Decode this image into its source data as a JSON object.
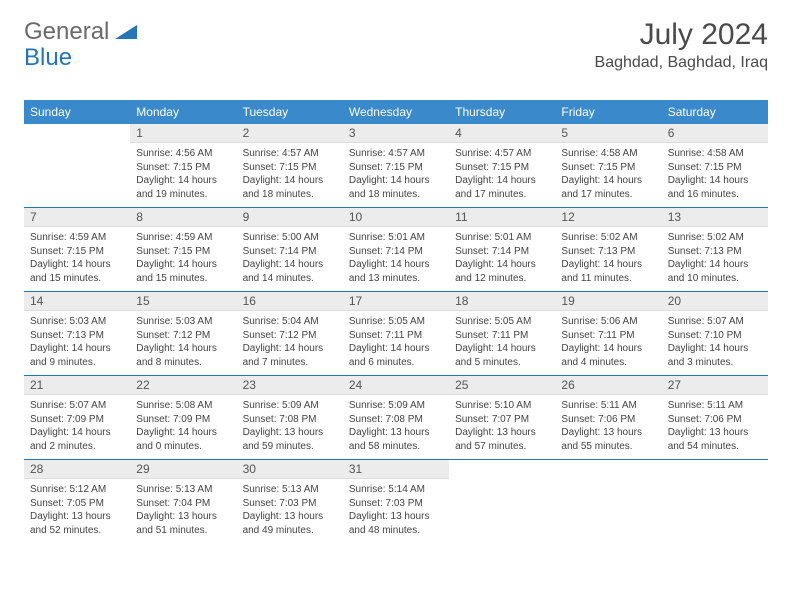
{
  "logo": {
    "general": "General",
    "blue": "Blue"
  },
  "title": "July 2024",
  "location": "Baghdad, Baghdad, Iraq",
  "colors": {
    "header_bg": "#3a8acb",
    "accent": "#2673b6",
    "daynum_bg": "#ececec",
    "text": "#444444",
    "title_text": "#4a4a4a"
  },
  "daynames": [
    "Sunday",
    "Monday",
    "Tuesday",
    "Wednesday",
    "Thursday",
    "Friday",
    "Saturday"
  ],
  "weeks": [
    [
      {
        "n": "",
        "sr": "",
        "ss": "",
        "dl": ""
      },
      {
        "n": "1",
        "sr": "Sunrise: 4:56 AM",
        "ss": "Sunset: 7:15 PM",
        "dl": "Daylight: 14 hours and 19 minutes."
      },
      {
        "n": "2",
        "sr": "Sunrise: 4:57 AM",
        "ss": "Sunset: 7:15 PM",
        "dl": "Daylight: 14 hours and 18 minutes."
      },
      {
        "n": "3",
        "sr": "Sunrise: 4:57 AM",
        "ss": "Sunset: 7:15 PM",
        "dl": "Daylight: 14 hours and 18 minutes."
      },
      {
        "n": "4",
        "sr": "Sunrise: 4:57 AM",
        "ss": "Sunset: 7:15 PM",
        "dl": "Daylight: 14 hours and 17 minutes."
      },
      {
        "n": "5",
        "sr": "Sunrise: 4:58 AM",
        "ss": "Sunset: 7:15 PM",
        "dl": "Daylight: 14 hours and 17 minutes."
      },
      {
        "n": "6",
        "sr": "Sunrise: 4:58 AM",
        "ss": "Sunset: 7:15 PM",
        "dl": "Daylight: 14 hours and 16 minutes."
      }
    ],
    [
      {
        "n": "7",
        "sr": "Sunrise: 4:59 AM",
        "ss": "Sunset: 7:15 PM",
        "dl": "Daylight: 14 hours and 15 minutes."
      },
      {
        "n": "8",
        "sr": "Sunrise: 4:59 AM",
        "ss": "Sunset: 7:15 PM",
        "dl": "Daylight: 14 hours and 15 minutes."
      },
      {
        "n": "9",
        "sr": "Sunrise: 5:00 AM",
        "ss": "Sunset: 7:14 PM",
        "dl": "Daylight: 14 hours and 14 minutes."
      },
      {
        "n": "10",
        "sr": "Sunrise: 5:01 AM",
        "ss": "Sunset: 7:14 PM",
        "dl": "Daylight: 14 hours and 13 minutes."
      },
      {
        "n": "11",
        "sr": "Sunrise: 5:01 AM",
        "ss": "Sunset: 7:14 PM",
        "dl": "Daylight: 14 hours and 12 minutes."
      },
      {
        "n": "12",
        "sr": "Sunrise: 5:02 AM",
        "ss": "Sunset: 7:13 PM",
        "dl": "Daylight: 14 hours and 11 minutes."
      },
      {
        "n": "13",
        "sr": "Sunrise: 5:02 AM",
        "ss": "Sunset: 7:13 PM",
        "dl": "Daylight: 14 hours and 10 minutes."
      }
    ],
    [
      {
        "n": "14",
        "sr": "Sunrise: 5:03 AM",
        "ss": "Sunset: 7:13 PM",
        "dl": "Daylight: 14 hours and 9 minutes."
      },
      {
        "n": "15",
        "sr": "Sunrise: 5:03 AM",
        "ss": "Sunset: 7:12 PM",
        "dl": "Daylight: 14 hours and 8 minutes."
      },
      {
        "n": "16",
        "sr": "Sunrise: 5:04 AM",
        "ss": "Sunset: 7:12 PM",
        "dl": "Daylight: 14 hours and 7 minutes."
      },
      {
        "n": "17",
        "sr": "Sunrise: 5:05 AM",
        "ss": "Sunset: 7:11 PM",
        "dl": "Daylight: 14 hours and 6 minutes."
      },
      {
        "n": "18",
        "sr": "Sunrise: 5:05 AM",
        "ss": "Sunset: 7:11 PM",
        "dl": "Daylight: 14 hours and 5 minutes."
      },
      {
        "n": "19",
        "sr": "Sunrise: 5:06 AM",
        "ss": "Sunset: 7:11 PM",
        "dl": "Daylight: 14 hours and 4 minutes."
      },
      {
        "n": "20",
        "sr": "Sunrise: 5:07 AM",
        "ss": "Sunset: 7:10 PM",
        "dl": "Daylight: 14 hours and 3 minutes."
      }
    ],
    [
      {
        "n": "21",
        "sr": "Sunrise: 5:07 AM",
        "ss": "Sunset: 7:09 PM",
        "dl": "Daylight: 14 hours and 2 minutes."
      },
      {
        "n": "22",
        "sr": "Sunrise: 5:08 AM",
        "ss": "Sunset: 7:09 PM",
        "dl": "Daylight: 14 hours and 0 minutes."
      },
      {
        "n": "23",
        "sr": "Sunrise: 5:09 AM",
        "ss": "Sunset: 7:08 PM",
        "dl": "Daylight: 13 hours and 59 minutes."
      },
      {
        "n": "24",
        "sr": "Sunrise: 5:09 AM",
        "ss": "Sunset: 7:08 PM",
        "dl": "Daylight: 13 hours and 58 minutes."
      },
      {
        "n": "25",
        "sr": "Sunrise: 5:10 AM",
        "ss": "Sunset: 7:07 PM",
        "dl": "Daylight: 13 hours and 57 minutes."
      },
      {
        "n": "26",
        "sr": "Sunrise: 5:11 AM",
        "ss": "Sunset: 7:06 PM",
        "dl": "Daylight: 13 hours and 55 minutes."
      },
      {
        "n": "27",
        "sr": "Sunrise: 5:11 AM",
        "ss": "Sunset: 7:06 PM",
        "dl": "Daylight: 13 hours and 54 minutes."
      }
    ],
    [
      {
        "n": "28",
        "sr": "Sunrise: 5:12 AM",
        "ss": "Sunset: 7:05 PM",
        "dl": "Daylight: 13 hours and 52 minutes."
      },
      {
        "n": "29",
        "sr": "Sunrise: 5:13 AM",
        "ss": "Sunset: 7:04 PM",
        "dl": "Daylight: 13 hours and 51 minutes."
      },
      {
        "n": "30",
        "sr": "Sunrise: 5:13 AM",
        "ss": "Sunset: 7:03 PM",
        "dl": "Daylight: 13 hours and 49 minutes."
      },
      {
        "n": "31",
        "sr": "Sunrise: 5:14 AM",
        "ss": "Sunset: 7:03 PM",
        "dl": "Daylight: 13 hours and 48 minutes."
      },
      {
        "n": "",
        "sr": "",
        "ss": "",
        "dl": ""
      },
      {
        "n": "",
        "sr": "",
        "ss": "",
        "dl": ""
      },
      {
        "n": "",
        "sr": "",
        "ss": "",
        "dl": ""
      }
    ]
  ]
}
